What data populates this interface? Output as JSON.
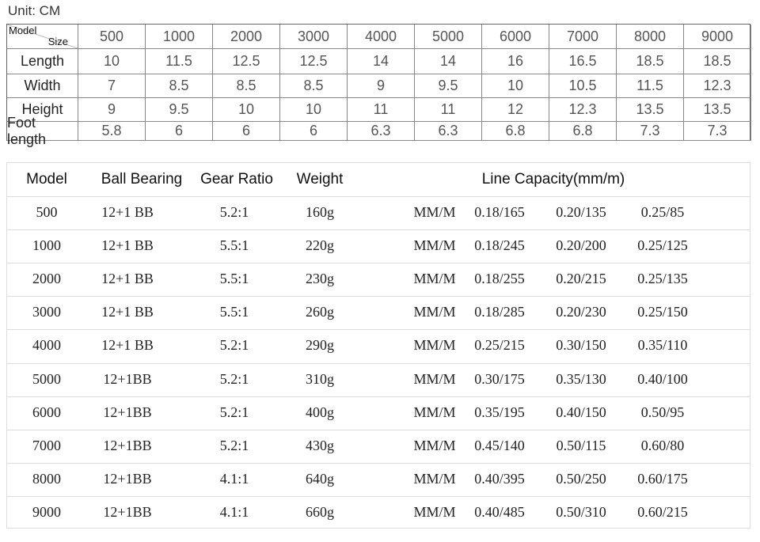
{
  "unit": "Unit: CM",
  "size_table": {
    "corner": {
      "top": "Model",
      "bottom": "Size"
    },
    "columns": [
      "500",
      "1000",
      "2000",
      "3000",
      "4000",
      "5000",
      "6000",
      "7000",
      "8000",
      "9000"
    ],
    "rows": [
      {
        "label": "Length",
        "values": [
          "10",
          "11.5",
          "12.5",
          "12.5",
          "14",
          "14",
          "16",
          "16.5",
          "18.5",
          "18.5"
        ]
      },
      {
        "label": "Width",
        "values": [
          "7",
          "8.5",
          "8.5",
          "8.5",
          "9",
          "9.5",
          "10",
          "10.5",
          "11.5",
          "12.3"
        ]
      },
      {
        "label": "Height",
        "values": [
          "9",
          "9.5",
          "10",
          "10",
          "11",
          "11",
          "12",
          "12.3",
          "13.5",
          "13.5"
        ]
      },
      {
        "label": "Foot length",
        "values": [
          "5.8",
          "6",
          "6",
          "6",
          "6.3",
          "6.3",
          "6.8",
          "6.8",
          "7.3",
          "7.3"
        ]
      }
    ]
  },
  "spec_table": {
    "header": [
      "Model",
      "Ball Bearing",
      "Gear Ratio",
      "Weight",
      "Line Capacity(mm/m)"
    ],
    "rows": [
      [
        "500",
        "12+1 BB",
        "5.2:1",
        "160g",
        "MM/M",
        "0.18/165",
        "0.20/135",
        "0.25/85"
      ],
      [
        "1000",
        "12+1 BB",
        "5.5:1",
        "220g",
        "MM/M",
        "0.18/245",
        "0.20/200",
        "0.25/125"
      ],
      [
        "2000",
        "12+1 BB",
        "5.5:1",
        "230g",
        "MM/M",
        "0.18/255",
        "0.20/215",
        "0.25/135"
      ],
      [
        "3000",
        "12+1 BB",
        "5.5:1",
        "260g",
        "MM/M",
        "0.18/285",
        "0.20/230",
        "0.25/150"
      ],
      [
        "4000",
        "12+1 BB",
        "5.2:1",
        "290g",
        "MM/M",
        "0.25/215",
        "0.30/150",
        "0.35/110"
      ],
      [
        "5000",
        "12+1BB",
        "5.2:1",
        "310g",
        "MM/M",
        "0.30/175",
        "0.35/130",
        "0.40/100"
      ],
      [
        "6000",
        "12+1BB",
        "5.2:1",
        "400g",
        "MM/M",
        "0.35/195",
        "0.40/150",
        "0.50/95"
      ],
      [
        "7000",
        "12+1BB",
        "5.2:1",
        "430g",
        "MM/M",
        "0.45/140",
        "0.50/115",
        "0.60/80"
      ],
      [
        "8000",
        "12+1BB",
        "4.1:1",
        "640g",
        "MM/M",
        "0.40/395",
        "0.50/250",
        "0.60/175"
      ],
      [
        "9000",
        "12+1BB",
        "4.1:1",
        "660g",
        "MM/M",
        "0.40/485",
        "0.50/310",
        "0.60/215"
      ]
    ]
  }
}
